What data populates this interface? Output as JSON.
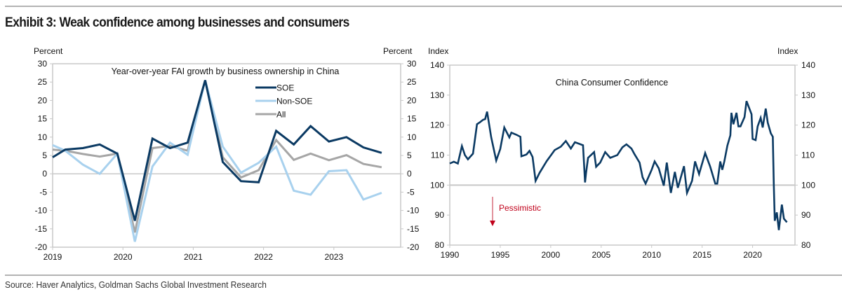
{
  "exhibit_title": "Exhibit 3: Weak confidence among businesses and consumers",
  "source": "Source: Haver Analytics, Goldman Sachs Global Investment Research",
  "colors": {
    "soe": "#0b3a63",
    "non_soe": "#a8d1ee",
    "all": "#a6a6a6",
    "confidence": "#0b3a63",
    "axis": "#c8c8c8",
    "annotation": "#c0001a"
  },
  "chart_data": [
    {
      "type": "line",
      "title": "Year-over-year FAI growth by business ownership in China",
      "ylabel_left": "Percent",
      "ylabel_right": "Percent",
      "ylim": [
        -20,
        30
      ],
      "yticks": [
        30,
        25,
        20,
        15,
        10,
        5,
        0,
        -5,
        -10,
        -15,
        -20
      ],
      "xlim": [
        2019.0,
        2023.95
      ],
      "xticks": [
        2019,
        2020,
        2021,
        2022,
        2023
      ],
      "x": [
        2019.0,
        2019.18,
        2019.43,
        2019.67,
        2019.92,
        2020.17,
        2020.42,
        2020.67,
        2020.92,
        2021.17,
        2021.42,
        2021.68,
        2021.93,
        2022.18,
        2022.43,
        2022.67,
        2022.93,
        2023.18,
        2023.42,
        2023.68
      ],
      "series": [
        {
          "name": "SOE",
          "color_key": "soe",
          "values": [
            4.5,
            6.6,
            7.0,
            8.0,
            5.5,
            -12.8,
            9.6,
            7.0,
            8.5,
            25.5,
            3.2,
            -2.0,
            -2.3,
            11.7,
            8.0,
            13.0,
            8.8,
            10.0,
            7.2,
            5.7
          ]
        },
        {
          "name": "Non-SOE",
          "color_key": "non_soe",
          "values": [
            7.8,
            6.3,
            2.5,
            0.0,
            5.5,
            -18.5,
            2.0,
            8.5,
            5.2,
            25.5,
            7.4,
            0.3,
            3.0,
            7.4,
            -4.6,
            -5.7,
            0.7,
            1.0,
            -7.0,
            -5.2
          ]
        },
        {
          "name": "All",
          "color_key": "all",
          "values": [
            6.6,
            6.3,
            5.4,
            4.7,
            5.5,
            -16.0,
            7.0,
            7.6,
            6.3,
            25.5,
            4.5,
            -1.0,
            1.0,
            9.2,
            3.8,
            5.5,
            3.7,
            5.1,
            2.7,
            1.8
          ]
        }
      ],
      "legend": [
        "SOE",
        "Non-SOE",
        "All"
      ],
      "legend_position": "top-right",
      "zero_line": true,
      "grid": false
    },
    {
      "type": "line",
      "title": "China Consumer Confidence",
      "ylabel_left": "Index",
      "ylabel_right": "Index",
      "ylim": [
        80,
        140
      ],
      "yticks": [
        140,
        130,
        120,
        110,
        100,
        90,
        80
      ],
      "xlim": [
        1990,
        2024.2
      ],
      "xticks": [
        1990,
        1995,
        2000,
        2005,
        2010,
        2015,
        2020
      ],
      "reference_line": 100,
      "annotation": "Pessimistic",
      "series": [
        {
          "name": "China Consumer Confidence",
          "color_key": "confidence",
          "x": [
            1990.0,
            1990.4,
            1990.8,
            1991.2,
            1991.5,
            1991.8,
            1992.3,
            1992.7,
            1993.0,
            1993.3,
            1993.5,
            1993.7,
            1994.1,
            1994.6,
            1995.0,
            1995.4,
            1995.9,
            1996.1,
            1996.6,
            1997.0,
            1997.1,
            1997.6,
            1997.9,
            1998.2,
            1998.5,
            1998.9,
            1999.6,
            2000.4,
            2001.0,
            2001.5,
            2002.0,
            2002.4,
            2003.2,
            2003.4,
            2003.5,
            2003.7,
            2004.3,
            2004.5,
            2004.9,
            2005.4,
            2005.9,
            2006.6,
            2007.1,
            2007.5,
            2008.0,
            2008.3,
            2008.8,
            2009.1,
            2009.4,
            2010.0,
            2010.3,
            2010.7,
            2011.2,
            2011.5,
            2011.9,
            2012.3,
            2012.6,
            2013.2,
            2013.5,
            2014.0,
            2014.3,
            2014.7,
            2015.3,
            2015.8,
            2016.3,
            2016.5,
            2016.8,
            2017.0,
            2017.2,
            2017.5,
            2017.8,
            2017.9,
            2018.1,
            2018.4,
            2018.6,
            2018.8,
            2019.2,
            2019.4,
            2019.9,
            2020.0,
            2020.3,
            2020.5,
            2020.8,
            2021.0,
            2021.3,
            2021.5,
            2021.8,
            2022.0,
            2022.1,
            2022.2,
            2022.4,
            2022.6,
            2022.9,
            2023.1,
            2023.4
          ],
          "values": [
            107.2,
            107.8,
            107.2,
            113.0,
            110.0,
            108.6,
            110.5,
            120.3,
            121.0,
            121.8,
            122.0,
            124.5,
            116.0,
            108.2,
            112.0,
            119.2,
            115.9,
            117.5,
            116.8,
            116.1,
            109.6,
            110.2,
            111.4,
            109.4,
            101.4,
            104.1,
            108.0,
            111.7,
            112.8,
            114.7,
            112.2,
            114.3,
            113.3,
            100.9,
            104.0,
            109.1,
            111.0,
            106.1,
            107.5,
            111.0,
            109.1,
            110.0,
            112.6,
            113.6,
            112.2,
            110.3,
            107.5,
            102.6,
            100.5,
            105.1,
            107.9,
            105.6,
            99.8,
            107.5,
            97.4,
            104.4,
            99.1,
            106.3,
            97.4,
            101.4,
            107.9,
            103.7,
            110.7,
            106.1,
            100.5,
            100.5,
            107.9,
            105.1,
            107.9,
            113.1,
            116.6,
            124.1,
            120.3,
            124.1,
            119.6,
            119.6,
            122.7,
            128.0,
            123.6,
            115.4,
            115.0,
            119.6,
            122.4,
            119.2,
            125.5,
            120.8,
            117.3,
            116.1,
            100.2,
            88.1,
            90.9,
            85.0,
            93.5,
            88.8,
            87.6
          ]
        }
      ],
      "grid": false
    }
  ]
}
